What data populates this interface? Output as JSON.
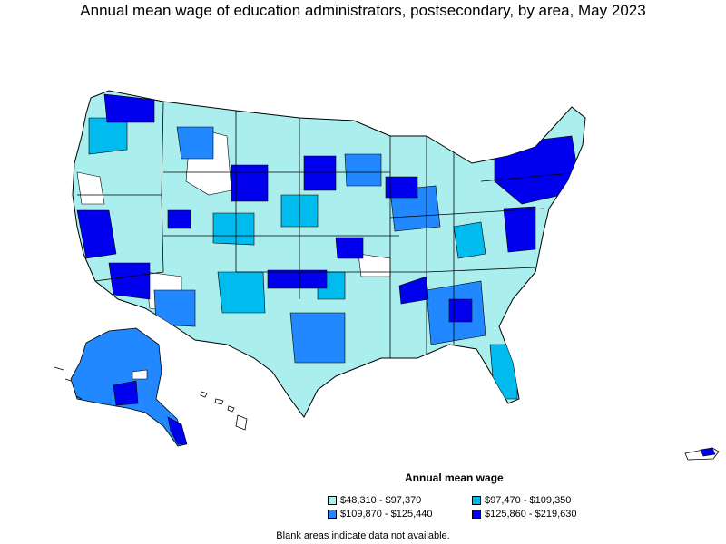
{
  "title": "Annual mean wage of education administrators, postsecondary, by area, May 2023",
  "legend": {
    "title": "Annual mean wage",
    "items": [
      {
        "label": "$48,310 - $97,370",
        "color": "#aaeeee"
      },
      {
        "label": "$97,470 - $109,350",
        "color": "#00bbee"
      },
      {
        "label": "$109,870 - $125,440",
        "color": "#2288ff"
      },
      {
        "label": "$125,860 - $219,630",
        "color": "#0000ee"
      }
    ]
  },
  "note": "Blank areas indicate data not available."
}
